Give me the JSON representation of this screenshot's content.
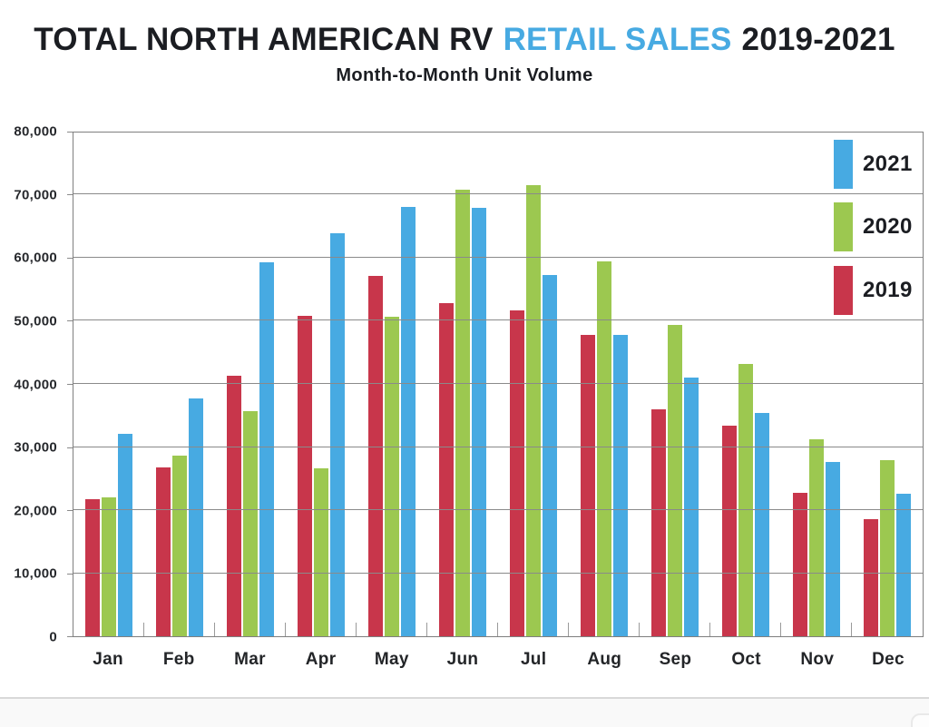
{
  "header": {
    "title_part1": "TOTAL NORTH AMERICAN RV",
    "title_highlight": "RETAIL SALES",
    "title_part2": "2019-2021",
    "subtitle": "Month-to-Month Unit Volume",
    "title_color": "#1b1d22",
    "highlight_color": "#47aae2"
  },
  "chart_data": {
    "type": "bar",
    "title": "TOTAL NORTH AMERICAN RV RETAIL SALES 2019-2021",
    "subtitle": "Month-to-Month Unit Volume",
    "categories": [
      "Jan",
      "Feb",
      "Mar",
      "Apr",
      "May",
      "Jun",
      "Jul",
      "Aug",
      "Sep",
      "Oct",
      "Nov",
      "Dec"
    ],
    "series": [
      {
        "name": "2019",
        "color": "#c8364b",
        "values": [
          21800,
          26800,
          41400,
          50900,
          57200,
          52900,
          51800,
          47900,
          36000,
          33400,
          22800,
          18600
        ]
      },
      {
        "name": "2020",
        "color": "#9cc850",
        "values": [
          22000,
          28700,
          35800,
          26600,
          50800,
          70900,
          71700,
          59600,
          49400,
          43300,
          31300,
          28000
        ]
      },
      {
        "name": "2021",
        "color": "#47aae2",
        "values": [
          32200,
          37700,
          59400,
          64000,
          68200,
          68000,
          57400,
          47800,
          41100,
          35500,
          27700,
          22700
        ]
      }
    ],
    "ylim": [
      0,
      80000
    ],
    "ytick_step": 10000,
    "grid": "horizontal",
    "grid_color": "#8a8a8a",
    "axis_color": "#7f7f7f",
    "legend_position": "top-right",
    "legend_order": [
      "2021",
      "2020",
      "2019"
    ]
  }
}
